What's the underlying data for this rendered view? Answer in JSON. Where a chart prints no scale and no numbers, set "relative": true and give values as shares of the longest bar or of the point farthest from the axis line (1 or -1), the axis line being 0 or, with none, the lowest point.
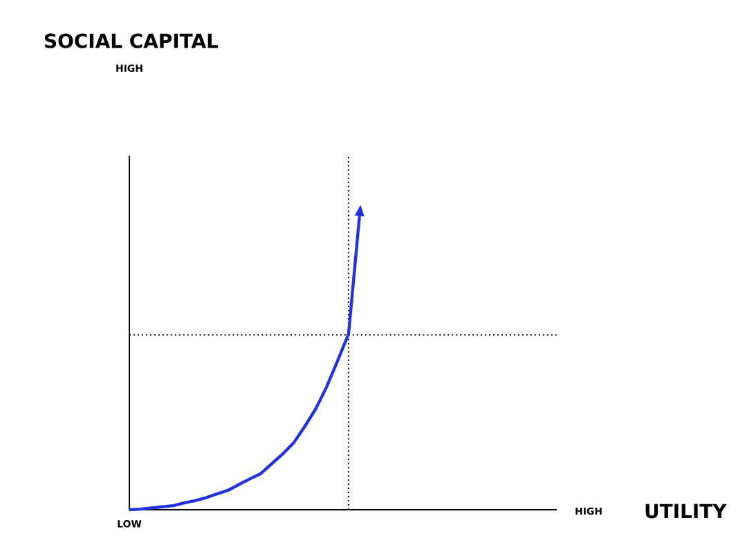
{
  "chart_data": {
    "type": "line",
    "title": "SOCIAL CAPITAL",
    "xlabel": "UTILITY",
    "relative": true,
    "categories": [
      null,
      null,
      null,
      null,
      null,
      null,
      null,
      null,
      null,
      null,
      null,
      null,
      null,
      null,
      null,
      null,
      null,
      null,
      null,
      null,
      null,
      null,
      null,
      null,
      null,
      null,
      null,
      null,
      null,
      null,
      null,
      null,
      null,
      null,
      null,
      null,
      null,
      null,
      null,
      null
    ],
    "series": [
      {
        "color": "#2233dd",
        "values": [
          0,
          0.002,
          0.006,
          0.01,
          0.014,
          0.023,
          0.031,
          0.041,
          0.054,
          0.066,
          0.086,
          0.105,
          0.123,
          0.157,
          0.19,
          0.228,
          0.283,
          0.343,
          0.418,
          0.507,
          0.598,
          1,
          null,
          null,
          null,
          null,
          null,
          null,
          null,
          null,
          null,
          null,
          null,
          null,
          null,
          null,
          null,
          null,
          null,
          null
        ]
      }
    ],
    "annotations": [
      "HIGH",
      "LOW",
      "HIGH"
    ],
    "ref_lines": [
      {
        "axis": "y",
        "value": 0.595,
        "line_style": "dotted",
        "color": "#000000"
      }
    ],
    "marker": "none",
    "line_style": "solid",
    "grid": false
  }
}
